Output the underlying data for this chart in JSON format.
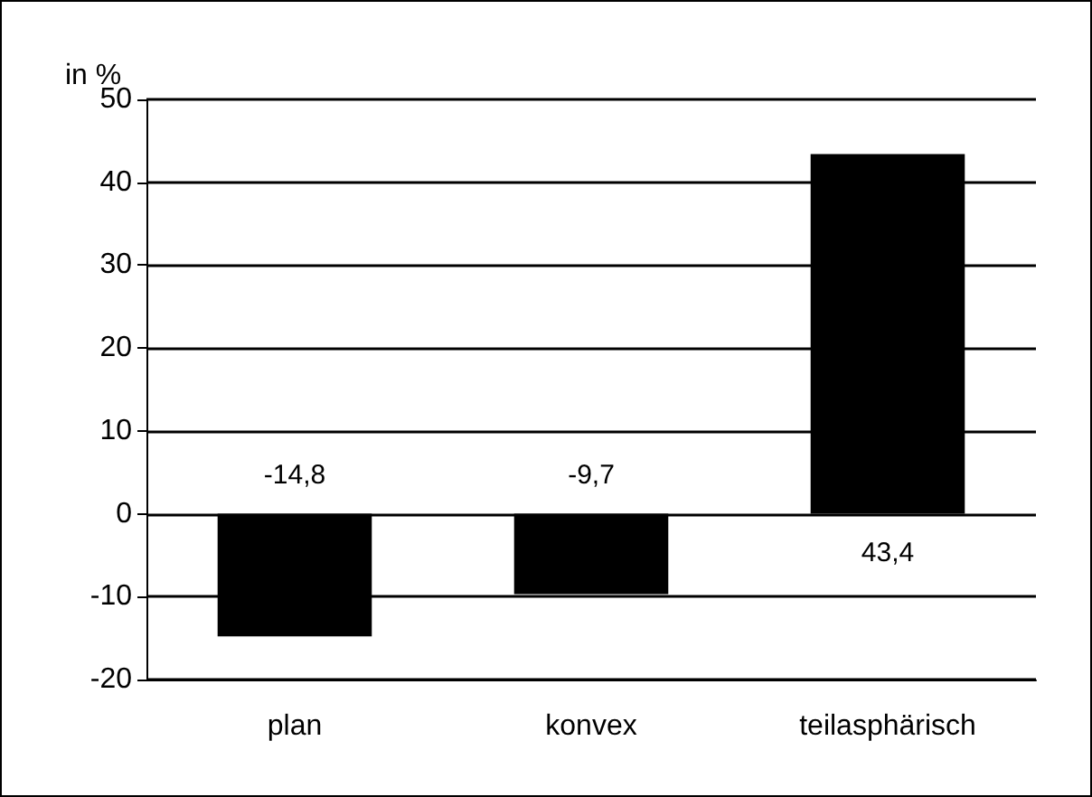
{
  "chart_data": {
    "type": "bar",
    "ylabel": "in %",
    "categories": [
      "plan",
      "konvex",
      "teilasphärisch"
    ],
    "values": [
      -14.8,
      -9.7,
      43.4
    ],
    "value_labels": [
      "-14,8",
      "-9,7",
      "43,4"
    ],
    "color": "#000000",
    "ylim": [
      -20,
      50
    ],
    "yticks": [
      -20,
      -10,
      0,
      10,
      20,
      30,
      40,
      50
    ],
    "grid": "y"
  }
}
